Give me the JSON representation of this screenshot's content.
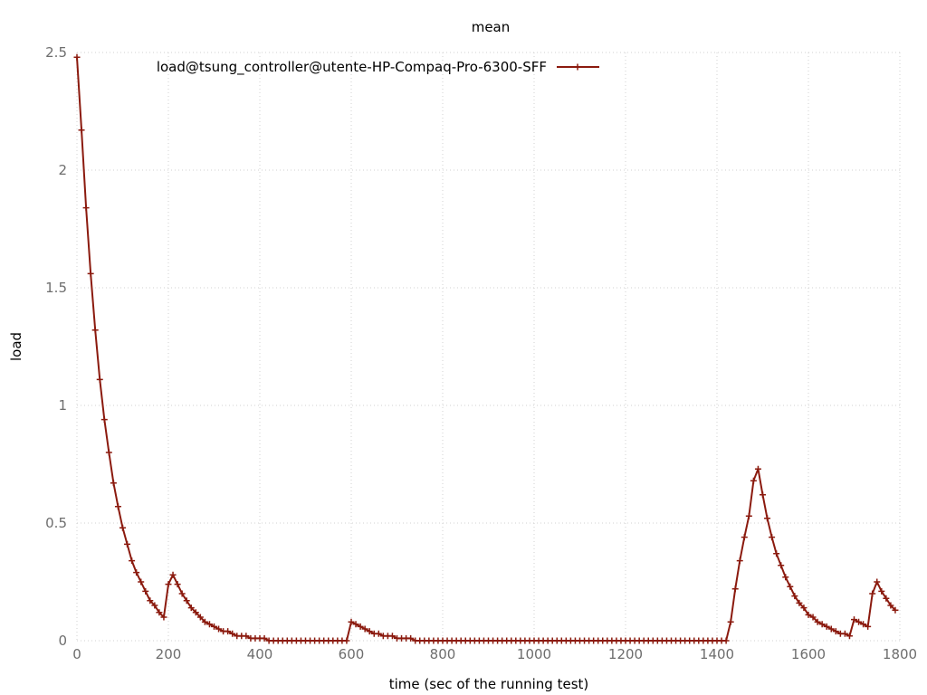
{
  "chart_data": {
    "type": "line",
    "title": "mean",
    "xlabel": "time (sec of the running test)",
    "ylabel": "load",
    "xlim": [
      0,
      1800
    ],
    "ylim": [
      0,
      2.5
    ],
    "x_ticks": [
      0,
      200,
      400,
      600,
      800,
      1000,
      1200,
      1400,
      1600,
      1800
    ],
    "y_ticks": [
      0,
      0.5,
      1,
      1.5,
      2,
      2.5
    ],
    "x_tick_labels": [
      "0",
      "200",
      "400",
      "600",
      "800",
      "1000",
      "1200",
      "1400",
      "1600",
      "1800"
    ],
    "y_tick_labels": [
      "0",
      "0.5",
      "1",
      "1.5",
      "2",
      "2.5"
    ],
    "grid": true,
    "legend_position": "top",
    "series": [
      {
        "name": "load@tsung_controller@utente-HP-Compaq-Pro-6300-SFF",
        "color": "#8b1a0e",
        "marker": "plus",
        "x": [
          0,
          10,
          20,
          30,
          40,
          50,
          60,
          70,
          80,
          90,
          100,
          110,
          120,
          130,
          140,
          150,
          160,
          170,
          180,
          190,
          200,
          210,
          220,
          230,
          240,
          250,
          260,
          270,
          280,
          290,
          300,
          310,
          320,
          330,
          340,
          350,
          360,
          370,
          380,
          390,
          400,
          410,
          420,
          430,
          440,
          450,
          460,
          470,
          480,
          490,
          500,
          510,
          520,
          530,
          540,
          550,
          560,
          570,
          580,
          590,
          600,
          610,
          620,
          630,
          640,
          650,
          660,
          670,
          680,
          690,
          700,
          710,
          720,
          730,
          740,
          750,
          760,
          770,
          780,
          790,
          800,
          810,
          820,
          830,
          840,
          850,
          860,
          870,
          880,
          890,
          900,
          910,
          920,
          930,
          940,
          950,
          960,
          970,
          980,
          990,
          1000,
          1010,
          1020,
          1030,
          1040,
          1050,
          1060,
          1070,
          1080,
          1090,
          1100,
          1110,
          1120,
          1130,
          1140,
          1150,
          1160,
          1170,
          1180,
          1190,
          1200,
          1210,
          1220,
          1230,
          1240,
          1250,
          1260,
          1270,
          1280,
          1290,
          1300,
          1310,
          1320,
          1330,
          1340,
          1350,
          1360,
          1370,
          1380,
          1390,
          1400,
          1410,
          1420,
          1430,
          1440,
          1450,
          1460,
          1470,
          1480,
          1490,
          1500,
          1510,
          1520,
          1530,
          1540,
          1550,
          1560,
          1570,
          1580,
          1590,
          1600,
          1610,
          1620,
          1630,
          1640,
          1650,
          1660,
          1670,
          1680,
          1690,
          1700,
          1710,
          1720,
          1730,
          1740,
          1750,
          1760,
          1770,
          1780,
          1790
        ],
        "y": [
          2.48,
          2.17,
          1.84,
          1.56,
          1.32,
          1.11,
          0.94,
          0.8,
          0.67,
          0.57,
          0.48,
          0.41,
          0.34,
          0.29,
          0.25,
          0.21,
          0.17,
          0.15,
          0.12,
          0.1,
          0.24,
          0.28,
          0.24,
          0.2,
          0.17,
          0.14,
          0.12,
          0.1,
          0.08,
          0.07,
          0.06,
          0.05,
          0.04,
          0.04,
          0.03,
          0.02,
          0.02,
          0.02,
          0.01,
          0.01,
          0.01,
          0.01,
          0.0,
          0.0,
          0.0,
          0.0,
          0.0,
          0.0,
          0.0,
          0.0,
          0.0,
          0.0,
          0.0,
          0.0,
          0.0,
          0.0,
          0.0,
          0.0,
          0.0,
          0.0,
          0.08,
          0.07,
          0.06,
          0.05,
          0.04,
          0.03,
          0.03,
          0.02,
          0.02,
          0.02,
          0.01,
          0.01,
          0.01,
          0.01,
          0.0,
          0.0,
          0.0,
          0.0,
          0.0,
          0.0,
          0.0,
          0.0,
          0.0,
          0.0,
          0.0,
          0.0,
          0.0,
          0.0,
          0.0,
          0.0,
          0.0,
          0.0,
          0.0,
          0.0,
          0.0,
          0.0,
          0.0,
          0.0,
          0.0,
          0.0,
          0.0,
          0.0,
          0.0,
          0.0,
          0.0,
          0.0,
          0.0,
          0.0,
          0.0,
          0.0,
          0.0,
          0.0,
          0.0,
          0.0,
          0.0,
          0.0,
          0.0,
          0.0,
          0.0,
          0.0,
          0.0,
          0.0,
          0.0,
          0.0,
          0.0,
          0.0,
          0.0,
          0.0,
          0.0,
          0.0,
          0.0,
          0.0,
          0.0,
          0.0,
          0.0,
          0.0,
          0.0,
          0.0,
          0.0,
          0.0,
          0.0,
          0.0,
          0.0,
          0.08,
          0.22,
          0.34,
          0.44,
          0.53,
          0.68,
          0.73,
          0.62,
          0.52,
          0.44,
          0.37,
          0.32,
          0.27,
          0.23,
          0.19,
          0.16,
          0.14,
          0.11,
          0.1,
          0.08,
          0.07,
          0.06,
          0.05,
          0.04,
          0.03,
          0.03,
          0.02,
          0.09,
          0.08,
          0.07,
          0.06,
          0.2,
          0.25,
          0.21,
          0.18,
          0.15,
          0.13
        ]
      }
    ]
  }
}
